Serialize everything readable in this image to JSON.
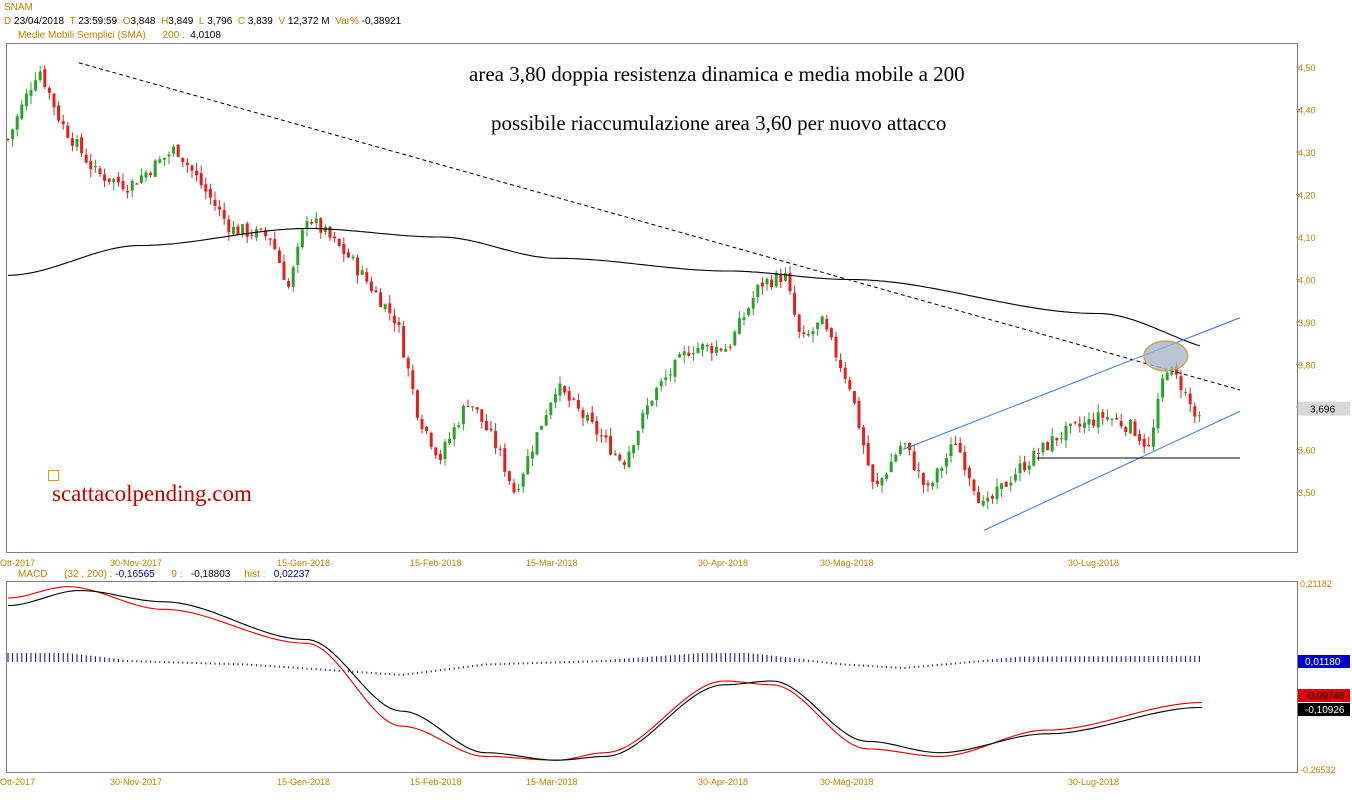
{
  "header": {
    "symbol": "SNAM",
    "d_label": "D",
    "date": "23/04/2018",
    "t_label": "T",
    "time": "23:59:59",
    "o_label": "O",
    "open": "3,848",
    "h_label": "H",
    "high": "3,849",
    "l_label": "L",
    "low": "3,796",
    "c_label": "C",
    "close": "3,839",
    "v_label": "V",
    "volume": "12,372 M",
    "var_label": "Var%",
    "var_value": "-0,38921",
    "sma_label": "Medie Mobili Semplici (SMA)",
    "sma_period": "200 :",
    "sma_value": "4,0108"
  },
  "annotations": {
    "line1": "area 3,80 doppia resistenza dinamica e media mobile a 200",
    "line2": "possibile riaccumulazione area 3,60 per nuovo attacco",
    "watermark": "scattacolpending.com"
  },
  "macd_header": {
    "label": "MACD",
    "params": "(32 , 200) :",
    "macd_value": "-0,16565",
    "signal_label": "9 :",
    "signal_value": "-0,18803",
    "hist_label": "hist :",
    "hist_value": "0,02237"
  },
  "colors": {
    "up_candle": "#2ca02c",
    "down_candle": "#e02020",
    "sma_line": "#000000",
    "channel": "#3a78d8",
    "macd_line": "#000000",
    "signal_line": "#e00000",
    "histogram": "#00008b",
    "axis_text": "#c08000",
    "highlight_ellipse": "#a8b4c8"
  },
  "chart_data": [
    {
      "type": "candlestick",
      "title": "SNAM",
      "ylim": [
        3.4,
        4.55
      ],
      "y_ticks": [
        "4,50",
        "4,40",
        "4,30",
        "4,20",
        "4,10",
        "4,00",
        "3,90",
        "3,80",
        "3,70",
        "3,60",
        "3,50"
      ],
      "x_ticks": [
        "Ott-2017",
        "30-Nov-2017",
        "15-Gen-2018",
        "15-Feb-2018",
        "15-Mar-2018",
        "30-Apr-2018",
        "30-Mag-2018",
        "30-Lug-2018"
      ],
      "last_price_label": "3,696",
      "price_anchors": [
        {
          "date": "Ott-2017",
          "close": 4.33
        },
        {
          "date": "2017-10-15",
          "close": 4.5
        },
        {
          "date": "2017-10-25",
          "close": 4.37
        },
        {
          "date": "2017-11-10",
          "close": 4.25
        },
        {
          "date": "2017-11-25",
          "close": 4.22
        },
        {
          "date": "2017-12-10",
          "close": 4.31
        },
        {
          "date": "2017-12-25",
          "close": 4.12
        },
        {
          "date": "2018-01-05",
          "close": 4.1
        },
        {
          "date": "2018-01-10",
          "close": 3.98
        },
        {
          "date": "2018-01-15",
          "close": 4.15
        },
        {
          "date": "2018-01-25",
          "close": 4.05
        },
        {
          "date": "2018-02-05",
          "close": 3.9
        },
        {
          "date": "2018-02-10",
          "close": 3.68
        },
        {
          "date": "2018-02-15",
          "close": 3.58
        },
        {
          "date": "2018-02-22",
          "close": 3.72
        },
        {
          "date": "2018-03-01",
          "close": 3.6
        },
        {
          "date": "2018-03-05",
          "close": 3.5
        },
        {
          "date": "2018-03-15",
          "close": 3.75
        },
        {
          "date": "2018-03-25",
          "close": 3.65
        },
        {
          "date": "2018-04-02",
          "close": 3.57
        },
        {
          "date": "2018-04-10",
          "close": 3.73
        },
        {
          "date": "2018-04-20",
          "close": 3.84
        },
        {
          "date": "2018-04-30",
          "close": 3.84
        },
        {
          "date": "2018-05-08",
          "close": 3.99
        },
        {
          "date": "2018-05-14",
          "close": 4.01
        },
        {
          "date": "2018-05-18",
          "close": 3.85
        },
        {
          "date": "2018-05-23",
          "close": 3.9
        },
        {
          "date": "2018-05-30",
          "close": 3.75
        },
        {
          "date": "2018-06-05",
          "close": 3.5
        },
        {
          "date": "2018-06-12",
          "close": 3.62
        },
        {
          "date": "2018-06-18",
          "close": 3.5
        },
        {
          "date": "2018-06-25",
          "close": 3.62
        },
        {
          "date": "2018-07-02",
          "close": 3.46
        },
        {
          "date": "2018-07-10",
          "close": 3.55
        },
        {
          "date": "2018-07-20",
          "close": 3.63
        },
        {
          "date": "2018-08-01",
          "close": 3.68
        },
        {
          "date": "2018-08-10",
          "close": 3.65
        },
        {
          "date": "2018-08-15",
          "close": 3.6
        },
        {
          "date": "2018-08-20",
          "close": 3.8
        },
        {
          "date": "2018-08-25",
          "close": 3.75
        },
        {
          "date": "2018-08-30",
          "close": 3.66
        },
        {
          "date": "2018-09-05",
          "close": 3.72
        },
        {
          "date": "2018-09-10",
          "close": 3.7
        }
      ],
      "sma200": [
        {
          "date": "Ott-2017",
          "value": 4.01
        },
        {
          "date": "30-Nov-2017",
          "value": 4.08
        },
        {
          "date": "15-Gen-2018",
          "value": 4.12
        },
        {
          "date": "15-Feb-2018",
          "value": 4.1
        },
        {
          "date": "15-Mar-2018",
          "value": 4.05
        },
        {
          "date": "30-Apr-2018",
          "value": 4.02
        },
        {
          "date": "30-Mag-2018",
          "value": 4.0
        },
        {
          "date": "30-Lug-2018",
          "value": 3.92
        },
        {
          "date": "2018-09-10",
          "value": 3.83
        }
      ],
      "trendline_dashed": [
        {
          "date": "2017-10-15",
          "value": 4.51
        },
        {
          "date": "2018-09-12",
          "value": 3.74
        }
      ],
      "channel_upper": [
        {
          "date": "2018-06-12",
          "value": 3.6
        },
        {
          "date": "2018-09-12",
          "value": 3.91
        }
      ],
      "channel_lower": [
        {
          "date": "2018-07-02",
          "value": 3.41
        },
        {
          "date": "2018-09-12",
          "value": 3.69
        }
      ],
      "support_line": {
        "value": 3.58,
        "from": "2018-07-15",
        "to": "2018-09-15"
      },
      "highlight": {
        "date": "2018-08-20",
        "value": 3.82
      }
    },
    {
      "type": "line",
      "title": "MACD",
      "ylim": [
        -0.26532,
        0.21182
      ],
      "y_ticks": [
        "0,21182",
        "-0,26532"
      ],
      "x_ticks": [
        "Ott-2017",
        "30-Nov-2017",
        "15-Gen-2018",
        "15-Feb-2018",
        "15-Mar-2018",
        "30-Apr-2018",
        "30-Mag-2018",
        "30-Lug-2018"
      ],
      "value_labels": {
        "histogram": "0,01180",
        "signal": "-0,09746",
        "macd": "-0,10926"
      },
      "series": [
        {
          "name": "MACD",
          "points": [
            [
              0,
              0.16
            ],
            [
              0.06,
              0.2
            ],
            [
              0.13,
              0.17
            ],
            [
              0.25,
              0.07
            ],
            [
              0.33,
              -0.12
            ],
            [
              0.4,
              -0.23
            ],
            [
              0.46,
              -0.25
            ],
            [
              0.5,
              -0.24
            ],
            [
              0.6,
              -0.05
            ],
            [
              0.64,
              -0.04
            ],
            [
              0.72,
              -0.2
            ],
            [
              0.78,
              -0.23
            ],
            [
              0.87,
              -0.18
            ],
            [
              1.0,
              -0.11
            ]
          ]
        },
        {
          "name": "9",
          "points": [
            [
              0,
              0.18
            ],
            [
              0.05,
              0.21
            ],
            [
              0.13,
              0.15
            ],
            [
              0.25,
              0.06
            ],
            [
              0.33,
              -0.16
            ],
            [
              0.4,
              -0.24
            ],
            [
              0.46,
              -0.25
            ],
            [
              0.5,
              -0.23
            ],
            [
              0.6,
              -0.04
            ],
            [
              0.64,
              -0.05
            ],
            [
              0.72,
              -0.22
            ],
            [
              0.78,
              -0.24
            ],
            [
              0.87,
              -0.17
            ],
            [
              1.0,
              -0.097
            ]
          ]
        }
      ],
      "histogram": [
        [
          0,
          0.02
        ],
        [
          0.05,
          0.02
        ],
        [
          0.1,
          0.0
        ],
        [
          0.2,
          -0.01
        ],
        [
          0.33,
          -0.04
        ],
        [
          0.4,
          -0.01
        ],
        [
          0.5,
          0.0
        ],
        [
          0.58,
          0.02
        ],
        [
          0.62,
          0.02
        ],
        [
          0.7,
          -0.01
        ],
        [
          0.75,
          -0.02
        ],
        [
          0.85,
          0.01
        ],
        [
          1.0,
          0.012
        ]
      ]
    }
  ]
}
